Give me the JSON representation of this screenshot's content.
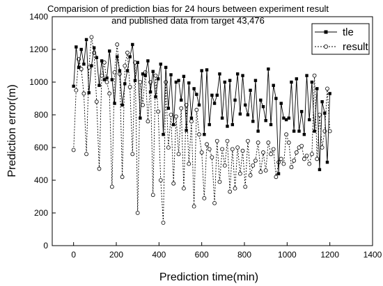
{
  "chart_data": {
    "type": "line",
    "title_lines": [
      "Comparision of prediction bias for 24 hours between experiment result",
      "and published data from target 43,476"
    ],
    "xlabel": "Prediction time(min)",
    "ylabel": "Prediction error(m)",
    "xlim": [
      -100,
      1400
    ],
    "ylim": [
      0,
      1400
    ],
    "xticks": [
      0,
      200,
      400,
      600,
      800,
      1000,
      1200,
      1400
    ],
    "yticks": [
      0,
      200,
      400,
      600,
      800,
      1000,
      1200,
      1400
    ],
    "grid": false,
    "legend_position": "top-right",
    "series": [
      {
        "name": "tle",
        "color": "#000000",
        "marker": "filled-square",
        "line_style": "solid",
        "x": [
          0,
          12,
          24,
          36,
          48,
          60,
          72,
          84,
          96,
          108,
          120,
          132,
          144,
          156,
          168,
          180,
          192,
          204,
          216,
          228,
          240,
          252,
          264,
          276,
          288,
          300,
          312,
          324,
          336,
          348,
          360,
          372,
          384,
          396,
          408,
          420,
          432,
          444,
          456,
          468,
          480,
          492,
          504,
          516,
          528,
          540,
          552,
          564,
          576,
          588,
          600,
          612,
          624,
          636,
          648,
          660,
          672,
          684,
          696,
          708,
          720,
          732,
          744,
          756,
          768,
          780,
          792,
          804,
          816,
          828,
          840,
          852,
          864,
          876,
          888,
          900,
          912,
          924,
          936,
          948,
          960,
          972,
          984,
          996,
          1008,
          1020,
          1032,
          1044,
          1056,
          1068,
          1080,
          1092,
          1104,
          1116,
          1128,
          1140,
          1152,
          1164,
          1176,
          1188,
          1200
        ],
        "y": [
          975,
          1215,
          1090,
          1200,
          1110,
          1260,
          935,
          1100,
          1210,
          1150,
          980,
          1130,
          1015,
          1025,
          1190,
          1015,
          870,
          1155,
          1070,
          860,
          990,
          1070,
          1155,
          1230,
          1010,
          1120,
          780,
          1050,
          1040,
          1130,
          940,
          1065,
          910,
          1020,
          1110,
          680,
          1090,
          840,
          1045,
          740,
          1000,
          1010,
          890,
          1035,
          705,
          995,
          780,
          960,
          925,
          860,
          1070,
          680,
          1075,
          740,
          920,
          870,
          920,
          1050,
          780,
          1000,
          730,
          1010,
          740,
          890,
          1050,
          805,
          1040,
          860,
          800,
          950,
          760,
          1010,
          700,
          890,
          850,
          765,
          1080,
          740,
          980,
          900,
          440,
          870,
          780,
          770,
          780,
          1000,
          700,
          1020,
          700,
          820,
          680,
          1040,
          770,
          1000,
          700,
          960,
          465,
          880,
          810,
          510,
          930
        ]
      },
      {
        "name": "result",
        "color": "#000000",
        "marker": "open-circle",
        "line_style": "dashed",
        "x": [
          0,
          12,
          24,
          36,
          48,
          60,
          72,
          84,
          96,
          108,
          120,
          132,
          144,
          156,
          168,
          180,
          192,
          204,
          216,
          228,
          240,
          252,
          264,
          276,
          288,
          300,
          312,
          324,
          336,
          348,
          360,
          372,
          384,
          396,
          408,
          420,
          432,
          444,
          456,
          468,
          480,
          492,
          504,
          516,
          528,
          540,
          552,
          564,
          576,
          588,
          600,
          612,
          624,
          636,
          648,
          660,
          672,
          684,
          696,
          708,
          720,
          732,
          744,
          756,
          768,
          780,
          792,
          804,
          816,
          828,
          840,
          852,
          864,
          876,
          888,
          900,
          912,
          924,
          936,
          948,
          960,
          972,
          984,
          996,
          1008,
          1020,
          1032,
          1044,
          1056,
          1068,
          1080,
          1092,
          1104,
          1116,
          1128,
          1140,
          1152,
          1164,
          1176,
          1188,
          1200
        ],
        "y": [
          585,
          950,
          1140,
          1080,
          930,
          560,
          1090,
          1275,
          1180,
          880,
          470,
          1040,
          1120,
          1000,
          930,
          360,
          1060,
          1230,
          1050,
          420,
          1100,
          1180,
          970,
          560,
          1120,
          200,
          1000,
          860,
          1060,
          760,
          1000,
          310,
          1040,
          820,
          400,
          140,
          1000,
          600,
          800,
          380,
          790,
          560,
          840,
          350,
          860,
          500,
          760,
          240,
          830,
          680,
          570,
          290,
          620,
          590,
          540,
          260,
          640,
          390,
          590,
          490,
          640,
          330,
          590,
          350,
          600,
          440,
          580,
          360,
          640,
          430,
          490,
          520,
          630,
          450,
          570,
          460,
          630,
          560,
          590,
          420,
          510,
          530,
          500,
          680,
          630,
          480,
          520,
          570,
          600,
          610,
          530,
          550,
          500,
          560,
          1040,
          530,
          800,
          600,
          700,
          960,
          700
        ]
      }
    ]
  }
}
